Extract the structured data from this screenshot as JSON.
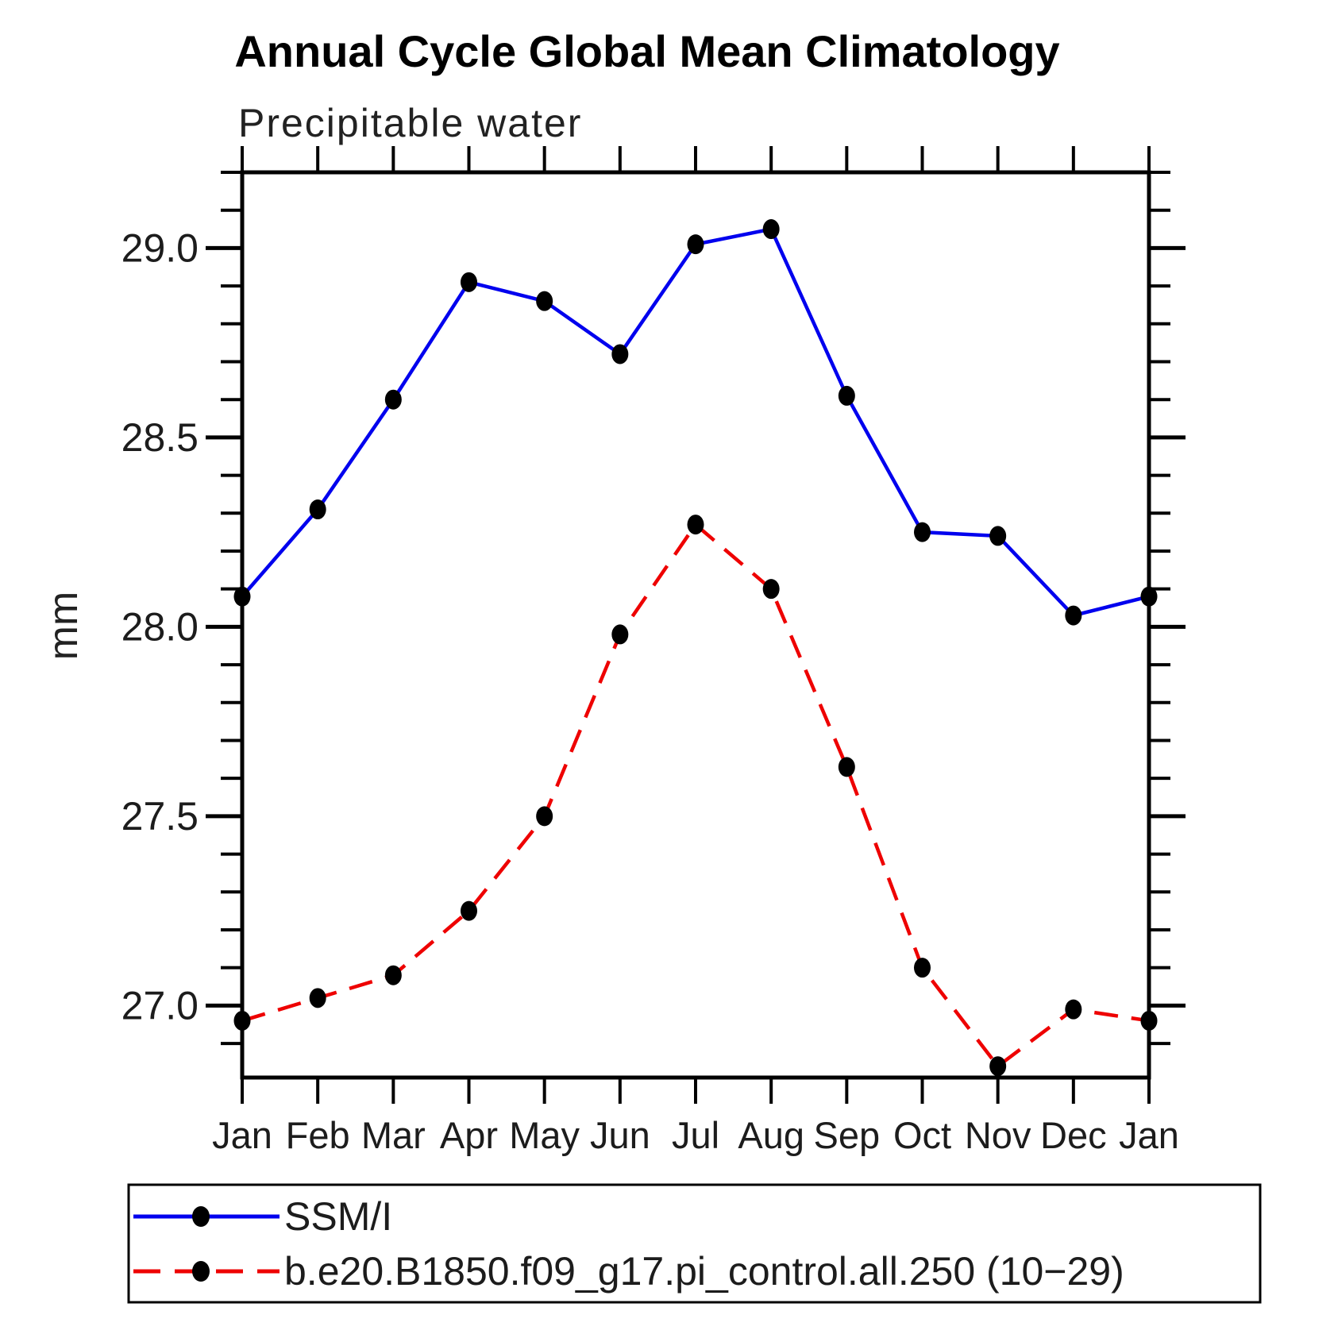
{
  "figure": {
    "title": "Annual Cycle Global Mean Climatology",
    "subtitle": "Precipitable water",
    "y_axis_label": "mm"
  },
  "chart_data": {
    "type": "line",
    "title": "Annual Cycle Global Mean Climatology",
    "subtitle": "Precipitable water",
    "xlabel": "",
    "ylabel": "mm",
    "grid": false,
    "legend_position": "bottom",
    "categories": [
      "Jan",
      "Feb",
      "Mar",
      "Apr",
      "May",
      "Jun",
      "Jul",
      "Aug",
      "Sep",
      "Oct",
      "Nov",
      "Dec",
      "Jan"
    ],
    "ylim": [
      26.81,
      29.2
    ],
    "yticks_major": [
      27.0,
      27.5,
      28.0,
      28.5,
      29.0
    ],
    "ytick_labels": [
      "27.0",
      "27.5",
      "28.0",
      "28.5",
      "29.0"
    ],
    "yminor_step": 0.1,
    "series": [
      {
        "name": "SSM/I",
        "color": "#0000ee",
        "line_style": "solid",
        "marker": "filled-circle",
        "marker_color": "#000000",
        "values": [
          28.08,
          28.31,
          28.6,
          28.91,
          28.86,
          28.72,
          29.01,
          29.05,
          28.61,
          28.25,
          28.24,
          28.03,
          28.08
        ]
      },
      {
        "name": "b.e20.B1850.f09_g17.pi_control.all.250 (10−29)",
        "color": "#ee0000",
        "line_style": "dashed",
        "marker": "filled-circle",
        "marker_color": "#000000",
        "values": [
          26.96,
          27.02,
          27.08,
          27.25,
          27.5,
          27.98,
          28.27,
          28.1,
          27.63,
          27.1,
          26.84,
          26.99,
          26.96
        ]
      }
    ]
  },
  "colors": {
    "axis": "#000000",
    "background": "#ffffff",
    "text": "#1c1c1c"
  }
}
